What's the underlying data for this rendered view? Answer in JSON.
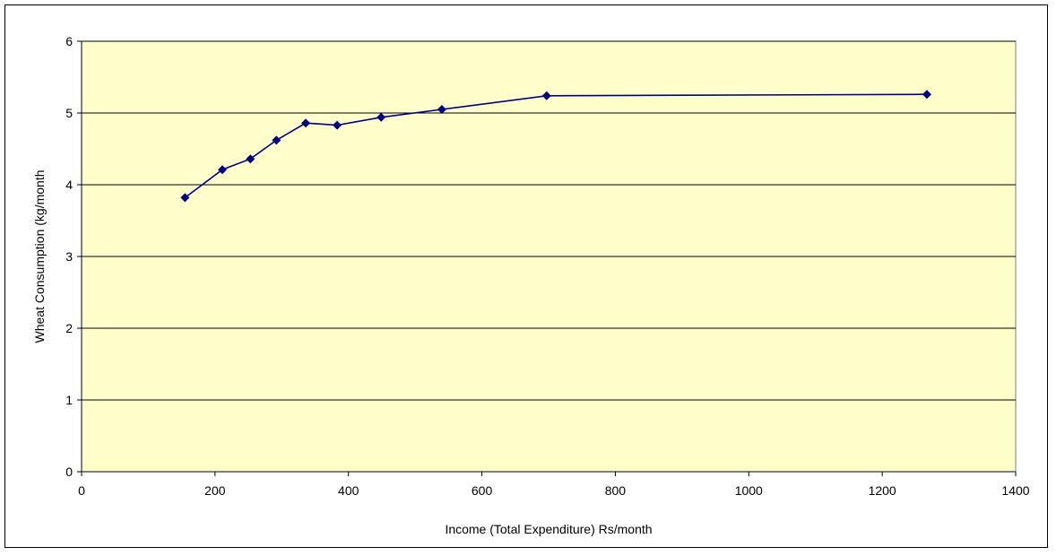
{
  "chart_data": {
    "type": "scatter",
    "title": "",
    "xlabel": "Income (Total Expenditure) Rs/month",
    "ylabel": "Wheat Consumption (kg/month",
    "xlim": [
      0,
      1400
    ],
    "ylim": [
      0,
      6
    ],
    "x_ticks": [
      "0",
      "200",
      "400",
      "600",
      "800",
      "1000",
      "1200",
      "1400"
    ],
    "y_ticks": [
      "0",
      "1",
      "2",
      "3",
      "4",
      "5",
      "6"
    ],
    "grid": "horizontal",
    "legend": "none",
    "series": [
      {
        "x": [
          155,
          211,
          253,
          292,
          336,
          383,
          449,
          540,
          697,
          1267
        ],
        "y": [
          3.82,
          4.21,
          4.36,
          4.62,
          4.86,
          4.83,
          4.94,
          5.05,
          5.24,
          5.26
        ]
      }
    ],
    "colors": {
      "plot_background": "#ffffcc",
      "series_line": "#000080",
      "series_marker": "#000080",
      "gridline": "#000000"
    }
  }
}
